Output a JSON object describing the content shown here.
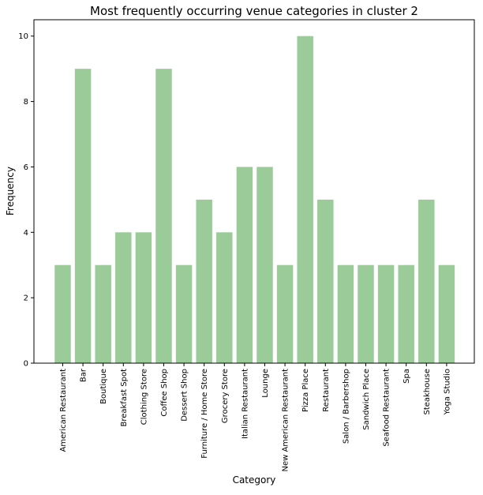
{
  "chart_data": {
    "type": "bar",
    "title": "Most frequently occurring venue categories in cluster 2",
    "xlabel": "Category",
    "ylabel": "Frequency",
    "ylim": [
      0,
      10.5
    ],
    "yticks": [
      0,
      2,
      4,
      6,
      8,
      10
    ],
    "grid": false,
    "bar_color": "#9acb99",
    "categories": [
      "American Restaurant",
      "Bar",
      "Boutique",
      "Breakfast Spot",
      "Clothing Store",
      "Coffee Shop",
      "Dessert Shop",
      "Furniture / Home Store",
      "Grocery Store",
      "Italian Restaurant",
      "Lounge",
      "New American Restaurant",
      "Pizza Place",
      "Restaurant",
      "Salon / Barbershop",
      "Sandwich Place",
      "Seafood Restaurant",
      "Spa",
      "Steakhouse",
      "Yoga Studio"
    ],
    "values": [
      3,
      9,
      3,
      4,
      4,
      9,
      3,
      5,
      4,
      6,
      6,
      3,
      10,
      5,
      3,
      3,
      3,
      3,
      5,
      3
    ]
  }
}
